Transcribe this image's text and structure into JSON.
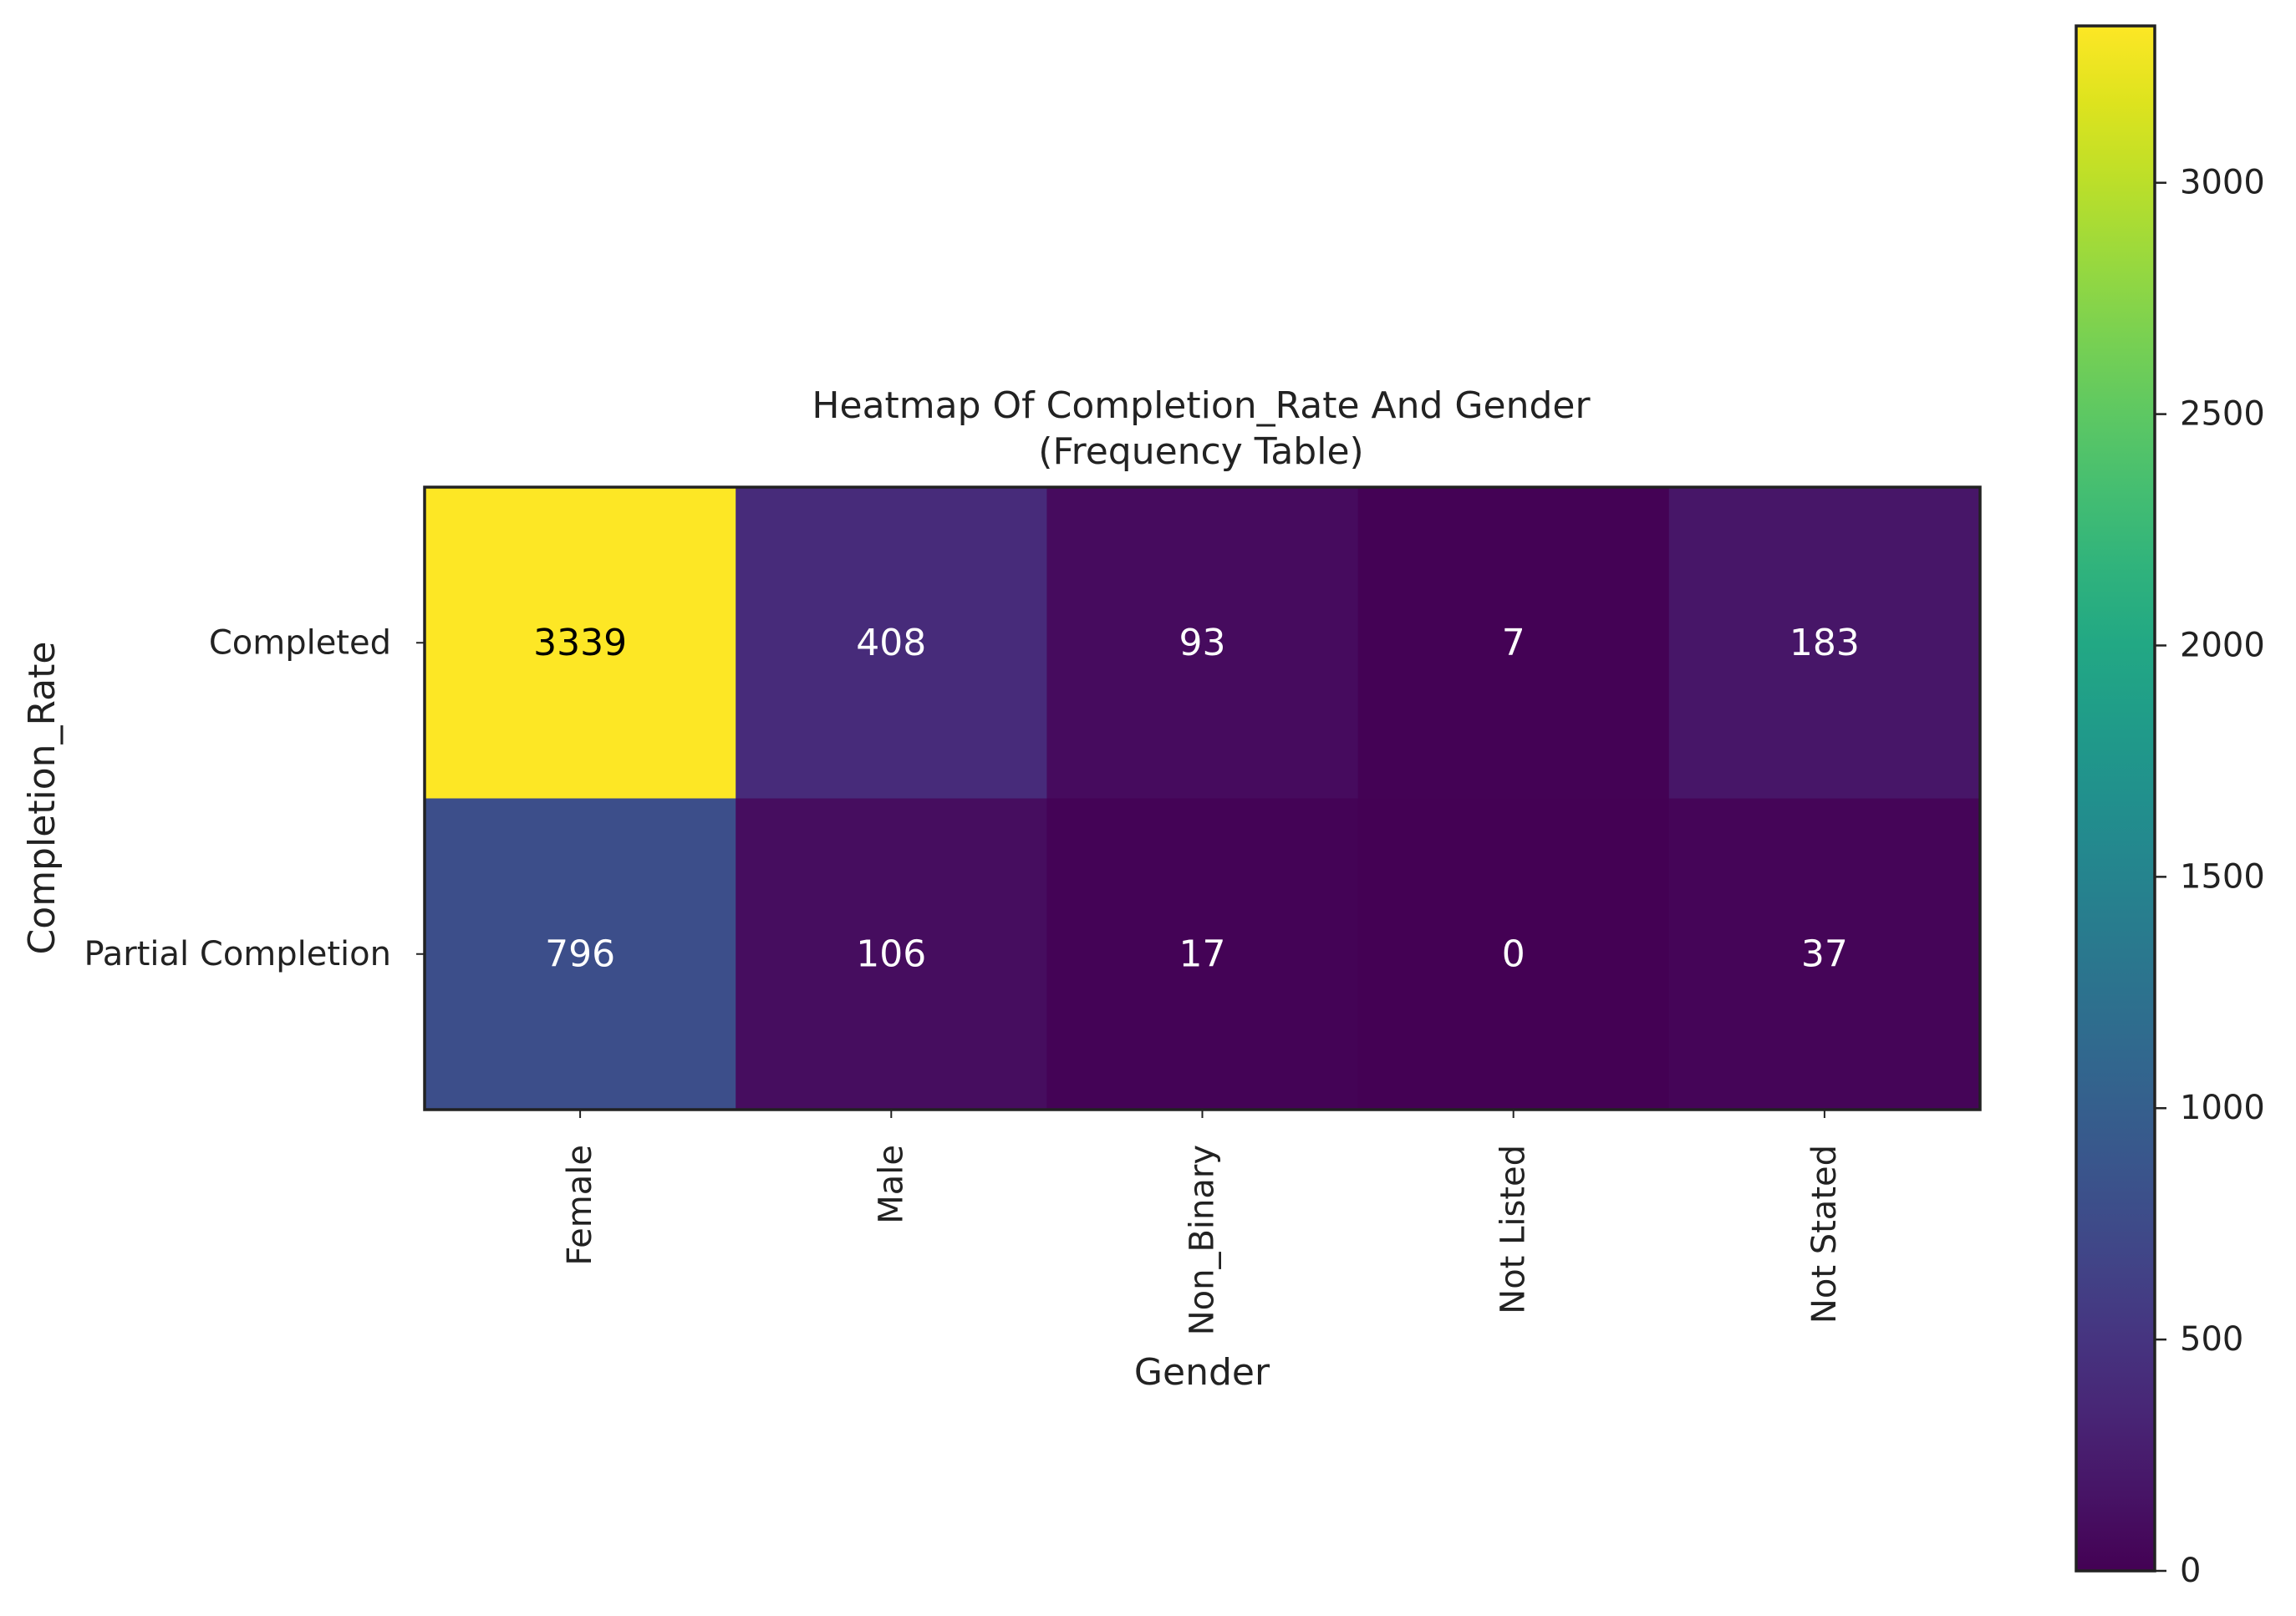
{
  "chart_data": {
    "type": "heatmap",
    "title": "Heatmap Of Completion_Rate And Gender",
    "subtitle": "(Frequency Table)",
    "xlabel": "Gender",
    "ylabel": "Completion_Rate",
    "x_categories": [
      "Female",
      "Male",
      "Non_Binary",
      "Not Listed",
      "Not Stated"
    ],
    "y_categories": [
      "Completed",
      "Partial Completion"
    ],
    "values": [
      [
        3339,
        408,
        93,
        7,
        183
      ],
      [
        796,
        106,
        17,
        0,
        37
      ]
    ],
    "colormap": "viridis",
    "colorbar": {
      "range": [
        0,
        3339
      ],
      "ticks": [
        0,
        500,
        1000,
        1500,
        2000,
        2500,
        3000
      ]
    },
    "grid": false
  }
}
